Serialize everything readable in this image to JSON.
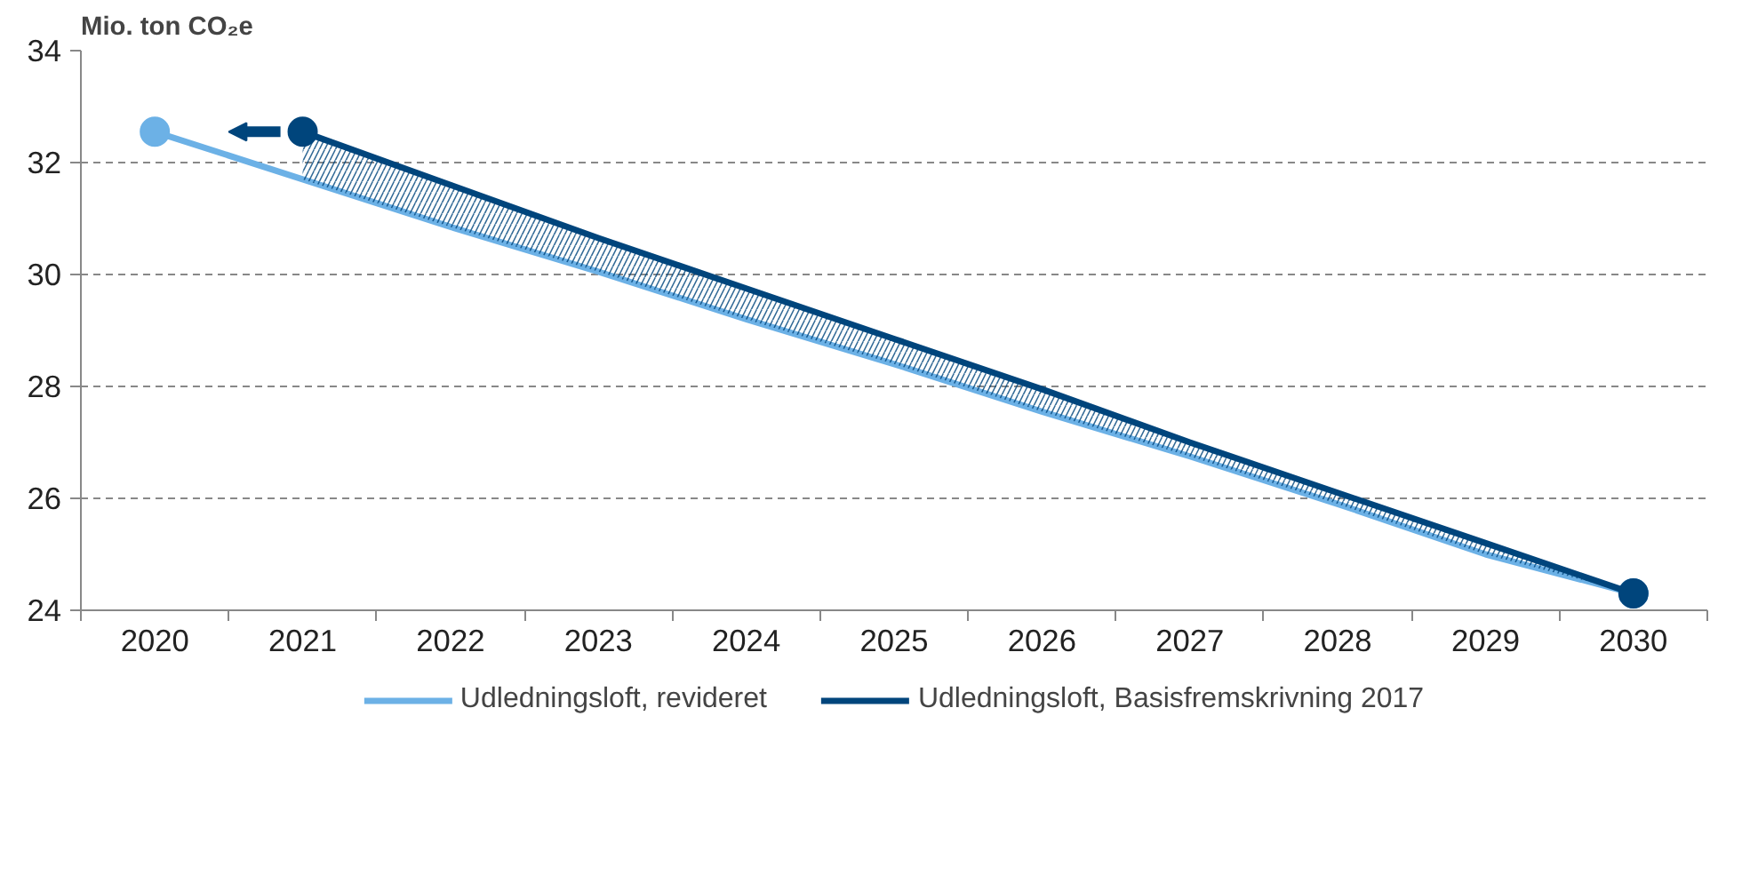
{
  "chart_data": {
    "type": "line",
    "ylabel": "Mio. ton CO₂e",
    "categories": [
      "2020",
      "2021",
      "2022",
      "2023",
      "2024",
      "2025",
      "2026",
      "2027",
      "2028",
      "2029",
      "2030"
    ],
    "series": [
      {
        "name": "Udledningsloft, revideret",
        "color": "#6cb1e6",
        "values": [
          32.55,
          31.7,
          30.85,
          30.05,
          29.2,
          28.4,
          27.55,
          26.75,
          25.9,
          25.0,
          24.3
        ]
      },
      {
        "name": "Udledningsloft, Basisfremskrivning 2017",
        "color": "#00457c",
        "values": [
          null,
          32.55,
          31.6,
          30.65,
          29.75,
          28.85,
          27.95,
          27.0,
          26.1,
          25.2,
          24.3
        ],
        "lower": [
          null,
          31.7,
          30.85,
          30.05,
          29.2,
          28.4,
          27.55,
          26.75,
          25.9,
          25.0,
          24.3
        ],
        "upper": [
          null,
          32.55,
          31.6,
          30.65,
          29.75,
          28.85,
          27.95,
          27.0,
          26.1,
          25.2,
          24.3
        ]
      }
    ],
    "ylim": [
      24,
      34
    ],
    "yticks": [
      24,
      26,
      28,
      30,
      32,
      34
    ],
    "grid": "y",
    "legend": "bottom",
    "line_style": "solid"
  }
}
